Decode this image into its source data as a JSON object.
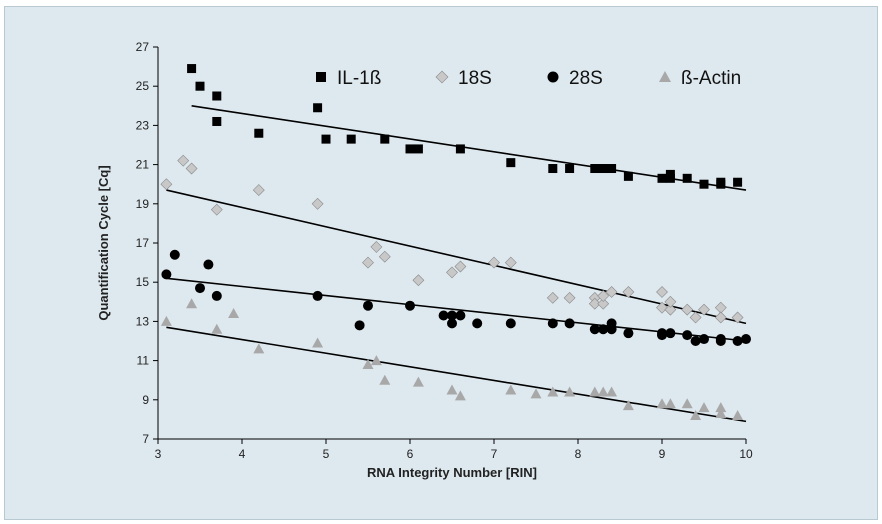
{
  "chart_data": {
    "type": "scatter",
    "xlabel": "RNA Integrity Number [RIN]",
    "ylabel": "Quantification Cycle [Cq]",
    "xlim": [
      3,
      10
    ],
    "ylim": [
      7,
      27
    ],
    "x_ticks": [
      3,
      4,
      5,
      6,
      7,
      8,
      9,
      10
    ],
    "y_ticks": [
      7,
      9,
      11,
      13,
      15,
      17,
      19,
      21,
      23,
      25,
      27
    ],
    "grid": false,
    "legend_position": "top",
    "series": [
      {
        "name": "IL-1ß",
        "marker": "square",
        "color": "#000000",
        "points": [
          [
            3.4,
            25.9
          ],
          [
            3.5,
            25.0
          ],
          [
            3.7,
            24.5
          ],
          [
            3.7,
            23.2
          ],
          [
            4.2,
            22.6
          ],
          [
            4.9,
            23.9
          ],
          [
            5.0,
            22.3
          ],
          [
            5.3,
            22.3
          ],
          [
            5.7,
            22.3
          ],
          [
            6.0,
            21.8
          ],
          [
            6.1,
            21.8
          ],
          [
            6.6,
            21.8
          ],
          [
            7.2,
            21.1
          ],
          [
            7.7,
            20.8
          ],
          [
            7.9,
            20.8
          ],
          [
            8.2,
            20.8
          ],
          [
            8.3,
            20.8
          ],
          [
            8.4,
            20.8
          ],
          [
            8.6,
            20.4
          ],
          [
            9.0,
            20.3
          ],
          [
            9.1,
            20.5
          ],
          [
            9.1,
            20.3
          ],
          [
            9.3,
            20.3
          ],
          [
            9.5,
            20.0
          ],
          [
            9.7,
            20.0
          ],
          [
            9.7,
            20.1
          ],
          [
            9.9,
            20.1
          ]
        ],
        "trend": [
          [
            3.4,
            24.0
          ],
          [
            10.0,
            19.7
          ]
        ]
      },
      {
        "name": "18S",
        "marker": "diamond",
        "color": "#c8c8c8",
        "points": [
          [
            3.1,
            20.0
          ],
          [
            3.3,
            21.2
          ],
          [
            3.4,
            20.8
          ],
          [
            3.7,
            18.7
          ],
          [
            4.2,
            19.7
          ],
          [
            4.9,
            19.0
          ],
          [
            5.5,
            16.0
          ],
          [
            5.6,
            16.8
          ],
          [
            5.7,
            16.3
          ],
          [
            6.1,
            15.1
          ],
          [
            6.5,
            15.5
          ],
          [
            6.6,
            15.8
          ],
          [
            7.0,
            16.0
          ],
          [
            7.2,
            16.0
          ],
          [
            7.7,
            14.2
          ],
          [
            7.9,
            14.2
          ],
          [
            8.2,
            14.2
          ],
          [
            8.2,
            13.9
          ],
          [
            8.3,
            13.9
          ],
          [
            8.3,
            14.3
          ],
          [
            8.4,
            14.5
          ],
          [
            8.6,
            14.5
          ],
          [
            9.0,
            14.5
          ],
          [
            9.0,
            13.7
          ],
          [
            9.1,
            13.6
          ],
          [
            9.1,
            14.0
          ],
          [
            9.3,
            13.6
          ],
          [
            9.4,
            13.2
          ],
          [
            9.5,
            13.6
          ],
          [
            9.7,
            13.7
          ],
          [
            9.7,
            13.2
          ],
          [
            9.9,
            13.2
          ]
        ],
        "trend": [
          [
            3.1,
            19.7
          ],
          [
            10.0,
            12.9
          ]
        ]
      },
      {
        "name": "28S",
        "marker": "circle",
        "color": "#000000",
        "points": [
          [
            3.1,
            15.4
          ],
          [
            3.2,
            16.4
          ],
          [
            3.5,
            14.7
          ],
          [
            3.6,
            15.9
          ],
          [
            3.7,
            14.3
          ],
          [
            4.9,
            14.3
          ],
          [
            5.4,
            12.8
          ],
          [
            5.5,
            13.8
          ],
          [
            6.0,
            13.8
          ],
          [
            6.4,
            13.3
          ],
          [
            6.5,
            12.9
          ],
          [
            6.5,
            13.3
          ],
          [
            6.6,
            13.3
          ],
          [
            6.8,
            12.9
          ],
          [
            7.2,
            12.9
          ],
          [
            7.7,
            12.9
          ],
          [
            7.9,
            12.9
          ],
          [
            8.2,
            12.6
          ],
          [
            8.3,
            12.6
          ],
          [
            8.4,
            12.6
          ],
          [
            8.4,
            12.9
          ],
          [
            8.6,
            12.4
          ],
          [
            9.0,
            12.4
          ],
          [
            9.0,
            12.3
          ],
          [
            9.1,
            12.4
          ],
          [
            9.3,
            12.3
          ],
          [
            9.4,
            12.0
          ],
          [
            9.5,
            12.1
          ],
          [
            9.7,
            12.0
          ],
          [
            9.7,
            12.1
          ],
          [
            9.9,
            12.0
          ],
          [
            10.0,
            12.1
          ]
        ],
        "trend": [
          [
            3.1,
            15.2
          ],
          [
            10.0,
            12.0
          ]
        ]
      },
      {
        "name": "ß-Actin",
        "marker": "triangle",
        "color": "#a8a8a8",
        "points": [
          [
            3.1,
            13.0
          ],
          [
            3.4,
            13.9
          ],
          [
            3.7,
            12.6
          ],
          [
            3.9,
            13.4
          ],
          [
            4.2,
            11.6
          ],
          [
            4.9,
            11.9
          ],
          [
            5.5,
            10.8
          ],
          [
            5.6,
            11.0
          ],
          [
            5.7,
            10.0
          ],
          [
            6.1,
            9.9
          ],
          [
            6.5,
            9.5
          ],
          [
            6.6,
            9.2
          ],
          [
            7.2,
            9.5
          ],
          [
            7.5,
            9.3
          ],
          [
            7.7,
            9.4
          ],
          [
            7.9,
            9.4
          ],
          [
            8.2,
            9.4
          ],
          [
            8.3,
            9.4
          ],
          [
            8.4,
            9.4
          ],
          [
            8.6,
            8.7
          ],
          [
            9.0,
            8.8
          ],
          [
            9.1,
            8.8
          ],
          [
            9.3,
            8.8
          ],
          [
            9.4,
            8.2
          ],
          [
            9.5,
            8.6
          ],
          [
            9.7,
            8.6
          ],
          [
            9.7,
            8.3
          ],
          [
            9.9,
            8.2
          ]
        ],
        "trend": [
          [
            3.1,
            12.7
          ],
          [
            10.0,
            7.9
          ]
        ]
      }
    ]
  }
}
